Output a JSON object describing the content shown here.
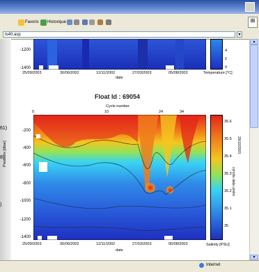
{
  "toolbar": {
    "favoris_label": "Favoris",
    "historique_label": "Historique"
  },
  "address": {
    "value": "ts40.asp"
  },
  "status": {
    "zone": "Internet"
  },
  "side_labels": [
    "61)",
    "8)",
    ")"
  ],
  "top_chart": {
    "yticks": [
      "-1200",
      "-1400"
    ],
    "xticks": [
      "25/09/2003",
      "30/06/2002",
      "12/11/2002",
      "27/03/2003",
      "05/08/2003"
    ],
    "xlabel": "date",
    "colorbar_ticks": [
      "4",
      "2",
      "0"
    ],
    "colorbar_label": "Temperature [°C]"
  },
  "main_chart": {
    "title": "Float Id : 69054",
    "cycle_label": "Cycle number",
    "cycle_ticks": [
      "0",
      "10",
      "24",
      "34"
    ],
    "ylabel": "Pressure [dbar]",
    "yticks": [
      "-200",
      "-400",
      "-600",
      "-800",
      "-1000",
      "-1200",
      "-1400"
    ],
    "xticks": [
      "25/09/2003",
      "30/06/2002",
      "12/11/2002",
      "27/03/2003",
      "05/08/2003"
    ],
    "xlabel": "date",
    "colorbar_ticks": [
      "35.6",
      "35.5",
      "35.4",
      "35.3",
      "35.2",
      "35.1",
      "35"
    ],
    "colorbar_label": "Salinity [PSU]",
    "side_text_1": "29/10/2003",
    "side_text_2": "coriolis data centre"
  },
  "colors": {
    "deep_blue": "#1e3fd0",
    "mid_blue": "#2f7fe6",
    "cyan": "#39d3f5",
    "yellow": "#f2e21f",
    "orange": "#f07b1c",
    "red": "#e3261a"
  }
}
